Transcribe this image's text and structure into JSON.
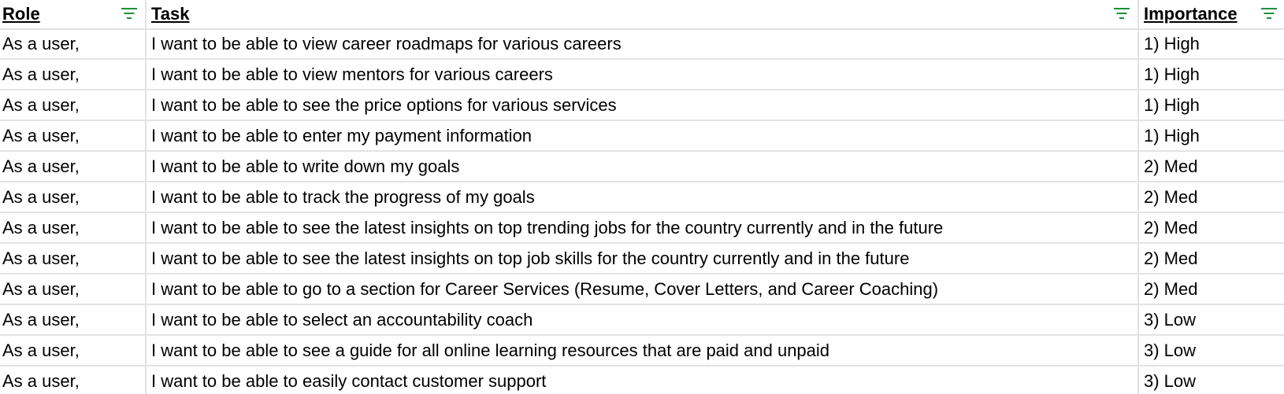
{
  "headers": {
    "role": "Role",
    "task": "Task",
    "importance": "Importance"
  },
  "colors": {
    "filter_icon": "#1e8e3e",
    "gridline": "#e2e3e3"
  },
  "rows": [
    {
      "role": "As a user,",
      "task": "I want to be able to view career roadmaps for various careers",
      "importance": "1) High"
    },
    {
      "role": "As a user,",
      "task": "I want to be able to view mentors for various careers",
      "importance": "1) High"
    },
    {
      "role": "As a user,",
      "task": "I want to be able to see the price options for various services",
      "importance": "1) High"
    },
    {
      "role": "As a user,",
      "task": "I want to be able to enter my payment information",
      "importance": "1) High"
    },
    {
      "role": "As a user,",
      "task": "I want to be able to write down my goals",
      "importance": "2) Med"
    },
    {
      "role": "As a user,",
      "task": "I want to be able to track the progress of my goals",
      "importance": "2) Med"
    },
    {
      "role": "As a user,",
      "task": "I want to be able to see the latest insights on top trending jobs for the country currently and in the future",
      "importance": "2) Med"
    },
    {
      "role": "As a user,",
      "task": "I want to be able to see the latest insights on top job skills for the country currently and in the future",
      "importance": "2) Med"
    },
    {
      "role": "As a user,",
      "task": "I want to be able to go to a section for Career Services (Resume, Cover Letters, and Career Coaching)",
      "importance": "2) Med"
    },
    {
      "role": "As a user,",
      "task": "I want to be able to select an accountability coach",
      "importance": "3) Low"
    },
    {
      "role": "As a user,",
      "task": "I want to be able to see a guide for all online learning resources that are paid and unpaid",
      "importance": "3) Low"
    },
    {
      "role": "As a user,",
      "task": "I want to be able to easily contact customer support",
      "importance": "3) Low"
    }
  ]
}
